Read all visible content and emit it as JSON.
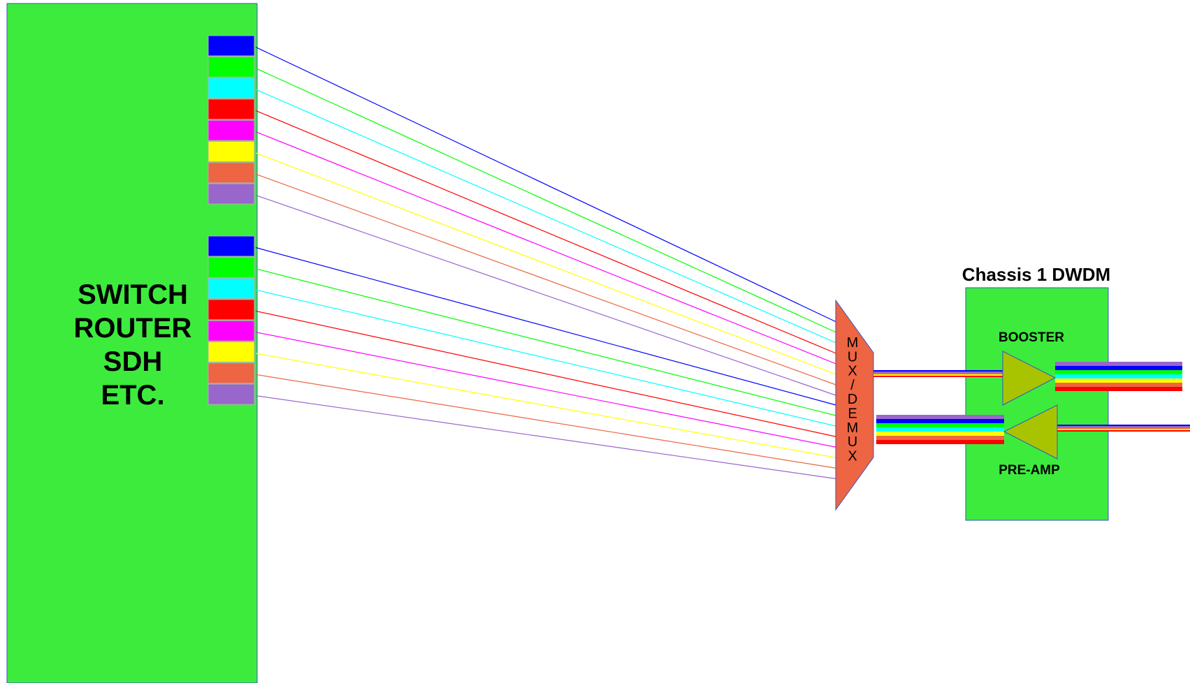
{
  "device": {
    "label_lines": [
      "SWITCH",
      "ROUTER",
      "SDH",
      "ETC."
    ],
    "fill_color": "#3deb3d"
  },
  "port_colors": [
    "#0000ff",
    "#00ff00",
    "#00ffff",
    "#ff0000",
    "#ff00ff",
    "#ffff00",
    "#ed6542",
    "#9966cc"
  ],
  "mux": {
    "label": "MUX/DEMUX",
    "fill_color": "#ed6542"
  },
  "chassis": {
    "title": "Chassis 1 DWDM",
    "fill_color": "#3deb3d",
    "booster_label": "BOOSTER",
    "preamp_label": "PRE-AMP",
    "amp_color": "#a8c400"
  }
}
